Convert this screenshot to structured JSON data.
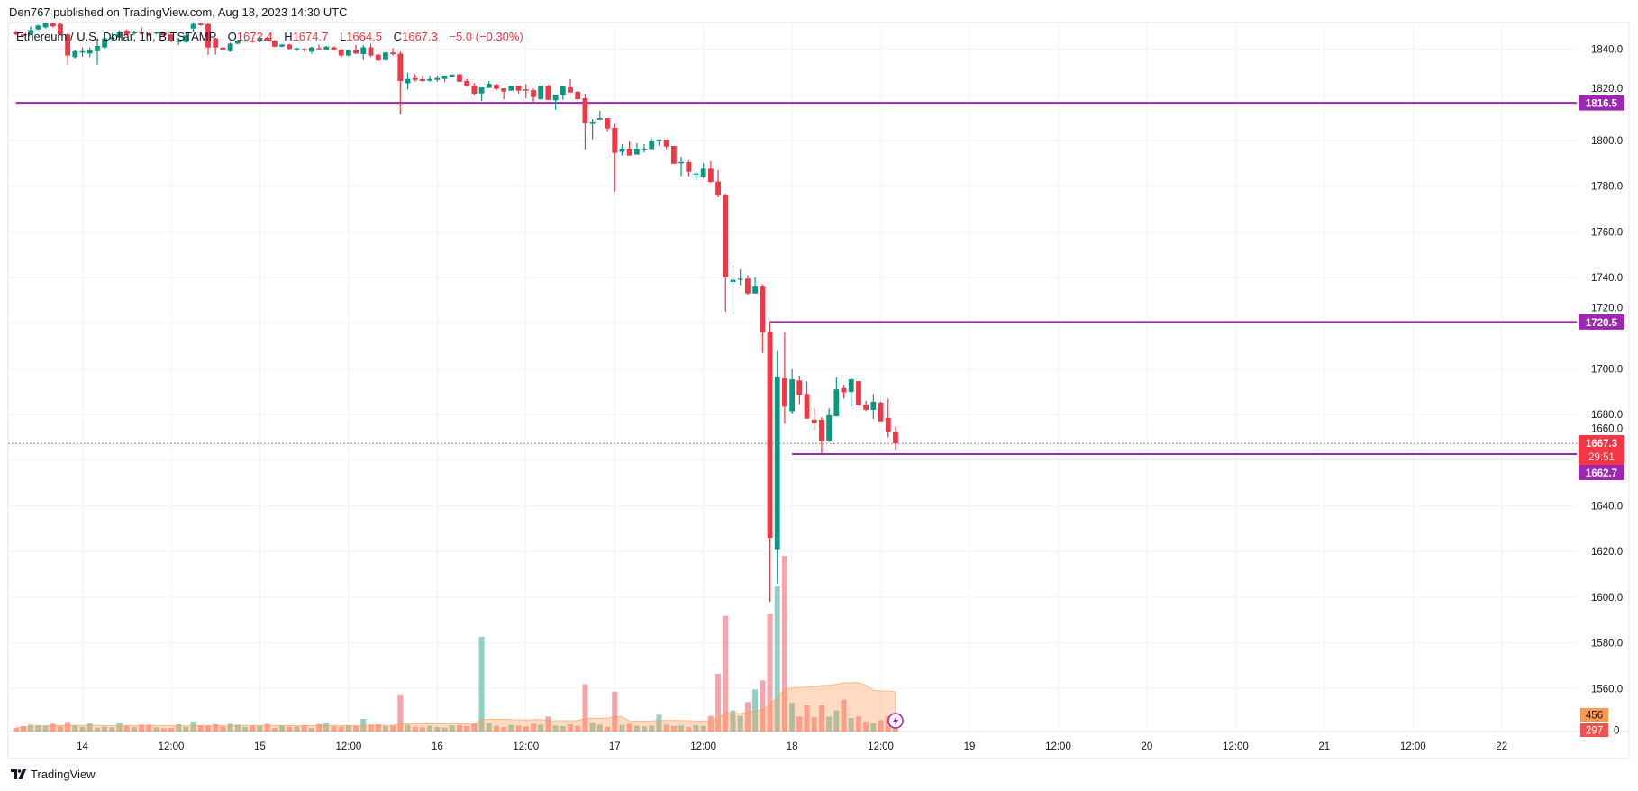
{
  "header": {
    "published": "Den767 published on TradingView.com, Aug 18, 2023 14:30 UTC"
  },
  "legend": {
    "symbol": "Ethereum / U.S. Dollar, 1h, BITSTAMP",
    "o_label": "O",
    "o": "1672.4",
    "h_label": "H",
    "h": "1674.7",
    "l_label": "L",
    "l": "1664.5",
    "c_label": "C",
    "c": "1667.3",
    "change": "−5.0 (−0.30%)"
  },
  "footer": {
    "brand": "TradingView",
    "logo_icon": "tradingview-logo-icon"
  },
  "colors": {
    "up": "#089981",
    "down": "#f23645",
    "level": "#9c27b0",
    "volume_ma": "#ff9850",
    "grid": "#f0f3fa"
  },
  "chart_data": {
    "type": "candlestick",
    "symbol": "ETHUSD",
    "interval": "1h",
    "start": "2023-08-13 15:00",
    "ylim": [
      1541,
      1852
    ],
    "grid": true,
    "y_ticks": [
      "1840.0",
      "1820.0",
      "1800.0",
      "1780.0",
      "1760.0",
      "1740.0",
      "1720.0",
      "1700.0",
      "1680.0",
      "1660.0",
      "1640.0",
      "1620.0",
      "1600.0",
      "1580.0",
      "1560.0"
    ],
    "x_ticks": [
      "14",
      "12:00",
      "15",
      "12:00",
      "16",
      "12:00",
      "17",
      "12:00",
      "18",
      "12:00",
      "19",
      "12:00",
      "20",
      "12:00",
      "21",
      "12:00",
      "22"
    ],
    "ohlc": [
      [
        1847.7,
        1848.2,
        1846.0,
        1846.4
      ],
      [
        1846.4,
        1846.8,
        1845.3,
        1845.7
      ],
      [
        1846.4,
        1849.9,
        1846.1,
        1848.3
      ],
      [
        1848.6,
        1850.8,
        1848.3,
        1850.3
      ],
      [
        1849.5,
        1853.0,
        1849.0,
        1851.5
      ],
      [
        1851.5,
        1853.0,
        1849.5,
        1850.0
      ],
      [
        1851.0,
        1852.0,
        1846.0,
        1846.4
      ],
      [
        1846.4,
        1846.8,
        1833.2,
        1837.2
      ],
      [
        1836.5,
        1839.5,
        1835.9,
        1839.1
      ],
      [
        1838.5,
        1840.7,
        1836.8,
        1839.1
      ],
      [
        1838.1,
        1840.7,
        1836.5,
        1839.4
      ],
      [
        1839.1,
        1844.7,
        1833.2,
        1841.4
      ],
      [
        1840.7,
        1845.5,
        1840.2,
        1844.7
      ],
      [
        1844.4,
        1847.0,
        1843.7,
        1845.1
      ],
      [
        1845.1,
        1848.2,
        1844.8,
        1847.7
      ],
      [
        1848.1,
        1848.6,
        1846.0,
        1846.4
      ],
      [
        1846.8,
        1848.1,
        1846.0,
        1847.3
      ],
      [
        1847.3,
        1849.7,
        1846.8,
        1847.0
      ],
      [
        1847.0,
        1847.3,
        1845.8,
        1846.1
      ],
      [
        1846.8,
        1847.6,
        1846.4,
        1847.3
      ],
      [
        1847.3,
        1847.5,
        1845.6,
        1846.0
      ],
      [
        1846.4,
        1846.8,
        1843.0,
        1843.7
      ],
      [
        1843.1,
        1844.7,
        1841.8,
        1843.7
      ],
      [
        1843.1,
        1847.0,
        1842.8,
        1846.0
      ],
      [
        1849.0,
        1852.0,
        1847.7,
        1851.0
      ],
      [
        1851.2,
        1851.5,
        1850.2,
        1850.5
      ],
      [
        1851.0,
        1851.2,
        1837.6,
        1840.7
      ],
      [
        1844.7,
        1845.0,
        1837.6,
        1840.7
      ],
      [
        1840.7,
        1841.0,
        1839.3,
        1839.8
      ],
      [
        1839.1,
        1842.8,
        1838.7,
        1842.4
      ],
      [
        1842.4,
        1844.0,
        1842.0,
        1843.7
      ],
      [
        1843.5,
        1844.1,
        1843.2,
        1843.8
      ],
      [
        1843.7,
        1844.0,
        1842.8,
        1843.1
      ],
      [
        1843.3,
        1845.3,
        1843.0,
        1845.0
      ],
      [
        1845.0,
        1845.3,
        1843.4,
        1843.7
      ],
      [
        1843.7,
        1844.0,
        1840.8,
        1841.1
      ],
      [
        1841.1,
        1842.3,
        1840.8,
        1842.0
      ],
      [
        1842.0,
        1842.3,
        1839.8,
        1840.1
      ],
      [
        1839.5,
        1840.7,
        1839.1,
        1840.4
      ],
      [
        1840.1,
        1840.4,
        1839.1,
        1839.4
      ],
      [
        1838.9,
        1841.1,
        1838.1,
        1840.7
      ],
      [
        1840.4,
        1842.0,
        1839.8,
        1840.0
      ],
      [
        1839.8,
        1841.4,
        1839.5,
        1841.1
      ],
      [
        1840.8,
        1841.1,
        1839.5,
        1839.8
      ],
      [
        1839.8,
        1840.1,
        1836.5,
        1837.2
      ],
      [
        1837.2,
        1839.8,
        1836.9,
        1839.4
      ],
      [
        1839.5,
        1841.8,
        1837.8,
        1838.1
      ],
      [
        1837.8,
        1841.8,
        1835.2,
        1840.8
      ],
      [
        1840.8,
        1842.4,
        1836.5,
        1837.2
      ],
      [
        1837.6,
        1837.9,
        1834.7,
        1835.0
      ],
      [
        1835.2,
        1838.8,
        1834.9,
        1838.5
      ],
      [
        1838.5,
        1840.4,
        1837.2,
        1837.8
      ],
      [
        1838.0,
        1839.0,
        1811.5,
        1826.0
      ],
      [
        1825.0,
        1829.6,
        1822.4,
        1826.9
      ],
      [
        1827.3,
        1829.0,
        1825.7,
        1826.5
      ],
      [
        1826.8,
        1828.4,
        1825.7,
        1826.0
      ],
      [
        1826.1,
        1828.4,
        1825.7,
        1826.9
      ],
      [
        1826.5,
        1828.4,
        1825.7,
        1827.3
      ],
      [
        1826.9,
        1828.4,
        1825.7,
        1828.4
      ],
      [
        1827.8,
        1828.9,
        1827.6,
        1828.8
      ],
      [
        1828.9,
        1829.2,
        1825.7,
        1825.7
      ],
      [
        1826.0,
        1826.9,
        1823.4,
        1823.8
      ],
      [
        1824.0,
        1825.1,
        1819.8,
        1820.5
      ],
      [
        1820.6,
        1823.2,
        1817.3,
        1823.2
      ],
      [
        1823.0,
        1826.0,
        1823.0,
        1824.8
      ],
      [
        1824.4,
        1824.7,
        1821.8,
        1822.6
      ],
      [
        1822.8,
        1822.8,
        1818.1,
        1821.4
      ],
      [
        1821.8,
        1824.0,
        1821.8,
        1824.0
      ],
      [
        1824.0,
        1824.0,
        1820.5,
        1821.8
      ],
      [
        1822.4,
        1824.7,
        1818.5,
        1821.8
      ],
      [
        1822.0,
        1822.8,
        1816.1,
        1819.0
      ],
      [
        1818.1,
        1824.0,
        1817.5,
        1824.0
      ],
      [
        1824.0,
        1824.4,
        1817.8,
        1817.8
      ],
      [
        1817.6,
        1820.1,
        1813.5,
        1820.1
      ],
      [
        1819.8,
        1823.6,
        1817.8,
        1823.6
      ],
      [
        1823.2,
        1826.8,
        1821.0,
        1821.0
      ],
      [
        1821.3,
        1821.7,
        1817.8,
        1818.1
      ],
      [
        1818.5,
        1820.5,
        1796.1,
        1807.6
      ],
      [
        1807.2,
        1809.4,
        1800.5,
        1808.3
      ],
      [
        1809.1,
        1813.0,
        1809.1,
        1809.8
      ],
      [
        1809.8,
        1809.8,
        1804.0,
        1805.2
      ],
      [
        1805.5,
        1807.3,
        1777.6,
        1794.6
      ],
      [
        1795.0,
        1798.4,
        1793.4,
        1796.4
      ],
      [
        1796.4,
        1799.6,
        1793.4,
        1793.4
      ],
      [
        1793.8,
        1798.8,
        1793.8,
        1796.4
      ],
      [
        1796.0,
        1798.4,
        1794.7,
        1796.4
      ],
      [
        1796.2,
        1800.8,
        1796.2,
        1800.0
      ],
      [
        1799.7,
        1800.4,
        1797.7,
        1800.4
      ],
      [
        1800.4,
        1800.4,
        1796.2,
        1797.3
      ],
      [
        1797.6,
        1797.6,
        1789.8,
        1789.8
      ],
      [
        1790.0,
        1792.9,
        1784.3,
        1790.6
      ],
      [
        1790.5,
        1791.3,
        1784.3,
        1786.3
      ],
      [
        1785.1,
        1786.6,
        1782.6,
        1785.5
      ],
      [
        1784.2,
        1790.1,
        1783.5,
        1787.6
      ],
      [
        1787.6,
        1790.9,
        1781.5,
        1781.8
      ],
      [
        1782.0,
        1787.0,
        1775.0,
        1776.0
      ],
      [
        1776.3,
        1776.7,
        1725.0,
        1740.0
      ],
      [
        1738.0,
        1745.0,
        1724.0,
        1739.0
      ],
      [
        1739.0,
        1743.5,
        1736.6,
        1739.5
      ],
      [
        1739.5,
        1741.0,
        1732.2,
        1733.0
      ],
      [
        1733.0,
        1740.0,
        1733.0,
        1736.0
      ],
      [
        1736.0,
        1737.0,
        1707.0,
        1716.0
      ],
      [
        1716.3,
        1720.5,
        1598.0,
        1626.0
      ],
      [
        1621.0,
        1707.7,
        1606.0,
        1696.5
      ],
      [
        1695.8,
        1716.0,
        1676.0,
        1683.5
      ],
      [
        1681.4,
        1699.8,
        1680.4,
        1695.4
      ],
      [
        1694.9,
        1697.0,
        1684.5,
        1688.5
      ],
      [
        1689.0,
        1694.6,
        1678.2,
        1678.2
      ],
      [
        1677.7,
        1682.8,
        1673.3,
        1676.2
      ],
      [
        1677.7,
        1678.8,
        1662.7,
        1668.4
      ],
      [
        1668.6,
        1682.8,
        1668.0,
        1679.7
      ],
      [
        1679.2,
        1696.2,
        1679.2,
        1691.0
      ],
      [
        1691.5,
        1693.0,
        1687.0,
        1689.7
      ],
      [
        1689.9,
        1695.8,
        1683.5,
        1695.4
      ],
      [
        1694.6,
        1694.6,
        1683.8,
        1684.0
      ],
      [
        1684.4,
        1686.0,
        1681.5,
        1682.1
      ],
      [
        1682.0,
        1689.0,
        1678.0,
        1685.6
      ],
      [
        1685.2,
        1685.8,
        1677.0,
        1677.0
      ],
      [
        1678.5,
        1687.0,
        1670.0,
        1672.3
      ],
      [
        1672.4,
        1674.7,
        1664.5,
        1667.3
      ]
    ],
    "volume": [
      120,
      180,
      230,
      210,
      200,
      260,
      170,
      320,
      190,
      150,
      270,
      130,
      160,
      140,
      290,
      180,
      150,
      230,
      230,
      140,
      110,
      120,
      240,
      160,
      330,
      210,
      190,
      250,
      170,
      260,
      230,
      150,
      190,
      180,
      260,
      120,
      200,
      150,
      170,
      210,
      120,
      250,
      300,
      170,
      160,
      210,
      180,
      420,
      230,
      240,
      180,
      200,
      1225,
      220,
      160,
      140,
      190,
      150,
      130,
      200,
      220,
      180,
      250,
      3150,
      280,
      190,
      150,
      220,
      200,
      170,
      260,
      230,
      500,
      200,
      180,
      240,
      190,
      1575,
      300,
      230,
      160,
      1330,
      220,
      260,
      190,
      170,
      200,
      560,
      230,
      180,
      200,
      150,
      210,
      180,
      520,
      1925,
      3850,
      700,
      520,
      980,
      1400,
      1700,
      3920,
      4830,
      5845,
      950,
      500,
      870,
      480,
      870,
      500,
      700,
      1060,
      450,
      500,
      330,
      280,
      380,
      520,
      297
    ],
    "levels": [
      {
        "price": 1816.5,
        "label": "1816.5",
        "start": "2023-08-13 15:00"
      },
      {
        "price": 1720.5,
        "label": "1720.5",
        "start": "2023-08-17 21:00"
      },
      {
        "price": 1662.7,
        "label": "1662.7",
        "start": "2023-08-18 00:00"
      }
    ],
    "last_price": {
      "value": 1667.3,
      "label": "1667.3",
      "countdown": "29:51"
    },
    "volume_ma_label": "456",
    "volume_label": "297",
    "volume_axis_label": "0",
    "alert_icon": "lightning-icon"
  }
}
